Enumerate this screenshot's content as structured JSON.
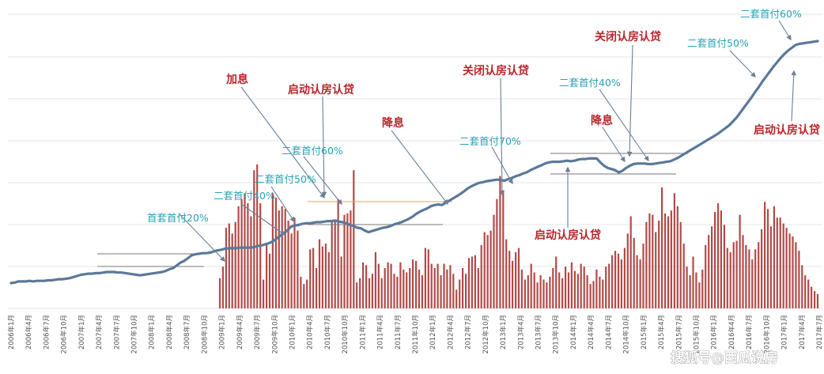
{
  "chart_data": {
    "type": "bar+line",
    "title": "",
    "xlabel": "",
    "ylabel": "",
    "grid": "horizontal",
    "colors": {
      "line": "#5b7899",
      "bars": "#b24a48",
      "ref_line": "#777777",
      "ref_line_orange": "#e9a073",
      "annotation_red": "#b8242a",
      "annotation_teal": "#2aa1b5"
    },
    "x_ticks": [
      "2006年1月",
      "2006年4月",
      "2006年7月",
      "2006年10月",
      "2007年1月",
      "2007年4月",
      "2007年7月",
      "2007年10月",
      "2008年1月",
      "2008年4月",
      "2008年7月",
      "2008年10月",
      "2009年1月",
      "2009年4月",
      "2009年7月",
      "2009年10月",
      "2010年1月",
      "2010年4月",
      "2010年7月",
      "2010年10月",
      "2011年1月",
      "2011年4月",
      "2011年7月",
      "2011年10月",
      "2012年1月",
      "2012年4月",
      "2012年7月",
      "2012年10月",
      "2013年1月",
      "2013年4月",
      "2013年7月",
      "2013年10月",
      "2014年1月",
      "2014年4月",
      "2014年7月",
      "2014年10月",
      "2015年1月",
      "2015年4月",
      "2015年7月",
      "2015年10月",
      "2016年1月",
      "2016年4月",
      "2016年7月",
      "2016年10月",
      "2017年1月",
      "2017年4月",
      "2017年7月"
    ],
    "price_series": [
      0.0,
      0.1,
      0.3,
      0.3,
      0.3,
      0.4,
      0.3,
      0.4,
      0.4,
      0.4,
      0.5,
      0.5,
      0.6,
      0.7,
      0.7,
      0.8,
      0.9,
      1.1,
      1.3,
      1.5,
      1.6,
      1.7,
      1.7,
      1.8,
      1.8,
      1.9,
      2.0,
      2.0,
      2.0,
      1.9,
      1.9,
      1.8,
      1.7,
      1.6,
      1.5,
      1.4,
      1.5,
      1.6,
      1.7,
      1.8,
      1.9,
      2.0,
      2.2,
      2.5,
      2.7,
      3.2,
      3.7,
      4.0,
      4.5,
      5.0,
      5.2,
      5.3,
      5.4,
      5.4,
      5.5,
      5.7,
      5.9,
      6.0,
      6.2,
      6.3,
      6.3,
      6.3,
      6.4,
      6.4,
      6.4,
      6.4,
      6.5,
      6.7,
      6.8,
      7.0,
      7.2,
      7.5,
      8.0,
      8.5,
      9.0,
      9.5,
      10.2,
      10.4,
      10.5,
      10.7,
      10.8,
      10.8,
      10.9,
      11.0,
      11.0,
      11.1,
      11.2,
      11.2,
      11.3,
      11.1,
      11.0,
      10.8,
      10.5,
      10.3,
      10.0,
      9.9,
      9.5,
      9.2,
      9.4,
      9.6,
      9.8,
      10.0,
      10.1,
      10.3,
      10.6,
      10.8,
      11.0,
      11.3,
      11.6,
      12.0,
      12.5,
      12.9,
      13.2,
      13.5,
      13.9,
      14.1,
      14.2,
      14.1,
      14.5,
      14.9,
      15.3,
      15.7,
      16.1,
      16.6,
      17.1,
      17.5,
      17.8,
      18.1,
      18.2,
      18.4,
      18.5,
      18.6,
      18.7,
      18.6,
      18.5,
      18.8,
      19.0,
      19.3,
      19.5,
      19.8,
      20.0,
      20.4,
      20.7,
      21.0,
      21.3,
      21.6,
      21.8,
      21.9,
      21.9,
      21.9,
      22.0,
      22.1,
      22.0,
      22.1,
      22.3,
      22.4,
      22.4,
      22.5,
      22.5,
      22.5,
      21.8,
      21.2,
      20.8,
      20.6,
      20.4,
      20.0,
      20.3,
      20.8,
      21.2,
      21.5,
      21.6,
      21.6,
      21.6,
      21.5,
      21.5,
      21.6,
      21.7,
      21.8,
      21.9,
      22.0,
      22.3,
      22.6,
      23.0,
      23.4,
      23.8,
      24.2,
      24.6,
      25.0,
      25.4,
      25.8,
      26.2,
      26.6,
      27.0,
      27.5,
      28.0,
      28.5,
      29.2,
      29.9,
      30.8,
      31.7,
      32.6,
      33.5,
      34.5,
      35.4,
      36.4,
      37.3,
      38.2,
      39.1,
      39.9,
      40.7,
      41.4,
      42.0,
      42.5,
      43.0,
      43.2,
      43.3,
      43.4,
      43.5,
      43.6,
      43.7
    ],
    "volume_bars": [
      0.21,
      0.29,
      0.56,
      0.59,
      0.52,
      0.6,
      0.71,
      0.76,
      0.8,
      0.73,
      0.64,
      0.96,
      1.0,
      0.73,
      0.2,
      0.44,
      0.38,
      0.8,
      0.77,
      0.68,
      0.71,
      0.69,
      0.61,
      0.52,
      0.63,
      0.54,
      0.22,
      0.17,
      0.2,
      0.41,
      0.42,
      0.28,
      0.48,
      0.43,
      0.45,
      0.39,
      0.6,
      0.61,
      0.76,
      0.36,
      0.65,
      0.66,
      0.68,
      0.96,
      0.18,
      0.21,
      0.32,
      0.3,
      0.21,
      0.24,
      0.39,
      0.31,
      0.21,
      0.28,
      0.32,
      0.31,
      0.24,
      0.22,
      0.32,
      0.27,
      0.25,
      0.28,
      0.34,
      0.33,
      0.27,
      0.23,
      0.42,
      0.41,
      0.31,
      0.28,
      0.31,
      0.23,
      0.31,
      0.27,
      0.3,
      0.24,
      0.13,
      0.2,
      0.28,
      0.24,
      0.35,
      0.36,
      0.37,
      0.28,
      0.44,
      0.53,
      0.51,
      0.54,
      0.65,
      0.76,
      0.92,
      0.82,
      0.48,
      0.4,
      0.33,
      0.39,
      0.42,
      0.27,
      0.2,
      0.23,
      0.31,
      0.25,
      0.18,
      0.23,
      0.2,
      0.18,
      0.22,
      0.28,
      0.36,
      0.25,
      0.21,
      0.29,
      0.25,
      0.32,
      0.26,
      0.24,
      0.31,
      0.29,
      0.23,
      0.17,
      0.19,
      0.27,
      0.22,
      0.2,
      0.29,
      0.31,
      0.37,
      0.4,
      0.38,
      0.34,
      0.42,
      0.52,
      0.64,
      0.49,
      0.37,
      0.34,
      0.45,
      0.6,
      0.66,
      0.65,
      0.53,
      0.61,
      0.84,
      0.66,
      0.64,
      0.68,
      0.8,
      0.71,
      0.6,
      0.45,
      0.29,
      0.23,
      0.36,
      0.25,
      0.18,
      0.27,
      0.44,
      0.51,
      0.57,
      0.67,
      0.73,
      0.68,
      0.58,
      0.42,
      0.39,
      0.46,
      0.47,
      0.65,
      0.51,
      0.44,
      0.41,
      0.34,
      0.41,
      0.46,
      0.55,
      0.74,
      0.69,
      0.57,
      0.71,
      0.63,
      0.63,
      0.59,
      0.56,
      0.52,
      0.5,
      0.46,
      0.4,
      0.3,
      0.23,
      0.2,
      0.15,
      0.12,
      0.1
    ],
    "ylim": [
      0,
      50
    ]
  },
  "annotations": {
    "red": [
      "加息",
      "启动认房认贷",
      "降息",
      "关闭认房认贷",
      "降息",
      "关闭认房认贷",
      "启动认房认贷",
      "启动认房认贷"
    ],
    "teal": [
      "首套首付20%",
      "二套首付40%",
      "二套首付50%",
      "二套首付60%",
      "二套首付70%",
      "二套首付40%",
      "二套首付50%",
      "二套首付60%"
    ]
  },
  "watermark": "搜狐号@西瓜说房"
}
